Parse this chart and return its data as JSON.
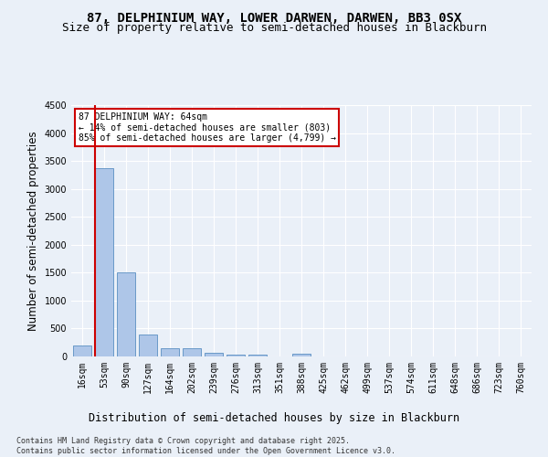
{
  "title1": "87, DELPHINIUM WAY, LOWER DARWEN, DARWEN, BB3 0SX",
  "title2": "Size of property relative to semi-detached houses in Blackburn",
  "xlabel": "Distribution of semi-detached houses by size in Blackburn",
  "ylabel": "Number of semi-detached properties",
  "bar_labels": [
    "16sqm",
    "53sqm",
    "90sqm",
    "127sqm",
    "164sqm",
    "202sqm",
    "239sqm",
    "276sqm",
    "313sqm",
    "351sqm",
    "388sqm",
    "425sqm",
    "462sqm",
    "499sqm",
    "537sqm",
    "574sqm",
    "611sqm",
    "648sqm",
    "686sqm",
    "723sqm",
    "760sqm"
  ],
  "bar_values": [
    200,
    3370,
    1500,
    390,
    150,
    145,
    70,
    40,
    35,
    0,
    50,
    0,
    0,
    0,
    0,
    0,
    0,
    0,
    0,
    0,
    0
  ],
  "bar_color": "#aec6e8",
  "bar_edge_color": "#5a8fc2",
  "highlight_index": 1,
  "highlight_line_color": "#cc0000",
  "annotation_text": "87 DELPHINIUM WAY: 64sqm\n← 14% of semi-detached houses are smaller (803)\n85% of semi-detached houses are larger (4,799) →",
  "annotation_box_color": "#ffffff",
  "annotation_box_edge": "#cc0000",
  "ylim": [
    0,
    4500
  ],
  "yticks": [
    0,
    500,
    1000,
    1500,
    2000,
    2500,
    3000,
    3500,
    4000,
    4500
  ],
  "footnote": "Contains HM Land Registry data © Crown copyright and database right 2025.\nContains public sector information licensed under the Open Government Licence v3.0.",
  "background_color": "#eaf0f8",
  "plot_bg_color": "#eaf0f8",
  "grid_color": "#ffffff",
  "title_fontsize": 10,
  "subtitle_fontsize": 9,
  "tick_fontsize": 7,
  "label_fontsize": 8.5,
  "footnote_fontsize": 6
}
